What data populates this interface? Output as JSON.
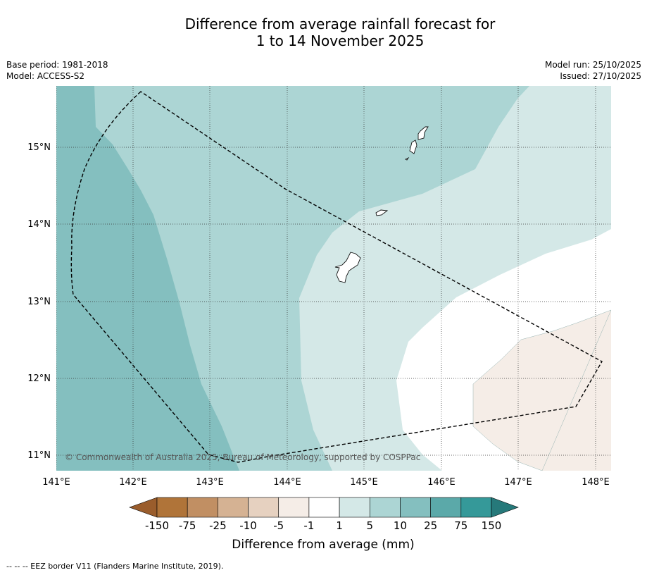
{
  "title": {
    "line1": "Difference from average rainfall forecast for",
    "line2": "1 to 14 November 2025"
  },
  "meta_left": {
    "base_period": "Base period: 1981-2018",
    "model": "Model: ACCESS-S2"
  },
  "meta_right": {
    "model_run": "Model run: 25/10/2025",
    "issued": "Issued: 27/10/2025"
  },
  "map": {
    "lat_labels": [
      "15°N",
      "14°N",
      "13°N",
      "12°N",
      "11°N"
    ],
    "lon_labels": [
      "141°E",
      "142°E",
      "143°E",
      "144°E",
      "145°E",
      "146°E",
      "147°E",
      "148°E"
    ],
    "copyright": "© Commonwealth of Australia 2025, Bureau of Meteorology, supported by COSPPac"
  },
  "colorbar": {
    "tick_labels": [
      "-150",
      "-75",
      "-25",
      "-10",
      "-5",
      "-1",
      "1",
      "5",
      "10",
      "25",
      "75",
      "150"
    ],
    "colors": [
      "#b07439",
      "#c18f63",
      "#d5b293",
      "#e6d1c0",
      "#f5ede7",
      "#ffffff",
      "#d4e8e7",
      "#acd5d4",
      "#84bfbf",
      "#5ba9a9",
      "#359999"
    ],
    "low_extend_color": "#9a5d2c",
    "high_extend_color": "#26797a",
    "label": "Difference from average (mm)"
  },
  "legend_footer": "--  --  -- EEZ border V11 (Flanders Marine Institute, 2019)."
}
